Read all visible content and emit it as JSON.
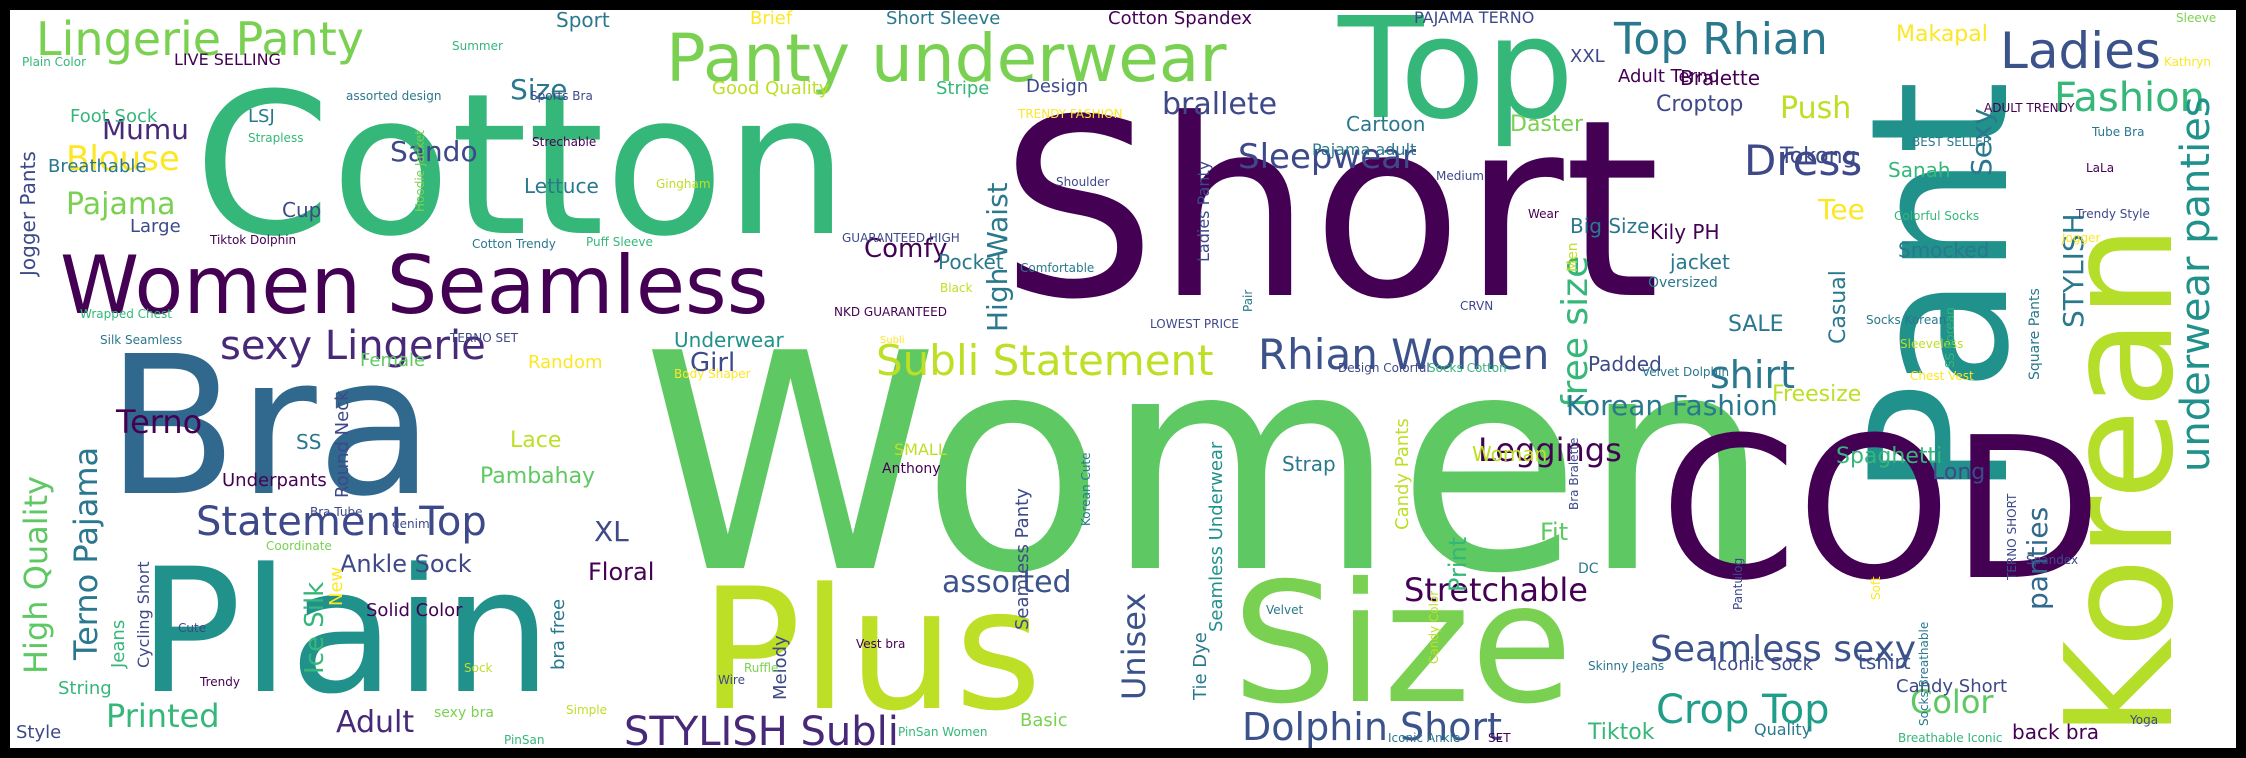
{
  "words": [
    {
      "text": "Women",
      "color": "#5ec962"
    },
    {
      "text": "Short",
      "color": "#440154"
    },
    {
      "text": "Cotton",
      "color": "#35b779"
    },
    {
      "text": "Top",
      "color": "#35b779"
    },
    {
      "text": "Pant",
      "color": "#21918c"
    },
    {
      "text": "Korean",
      "color": "#b5de2b"
    },
    {
      "text": "COD",
      "color": "#440154"
    },
    {
      "text": "Bra",
      "color": "#31688e"
    },
    {
      "text": "Plain",
      "color": "#21918c"
    },
    {
      "text": "Plus",
      "color": "#bddf26"
    },
    {
      "text": "Size",
      "color": "#7ad151"
    },
    {
      "text": "Women Seamless",
      "color": "#440154"
    },
    {
      "text": "Panty underwear",
      "color": "#7ad151"
    },
    {
      "text": "Lingerie Panty",
      "color": "#7ad151"
    },
    {
      "text": "Top Rhian",
      "color": "#2a788e"
    },
    {
      "text": "Ladies",
      "color": "#3b528b"
    },
    {
      "text": "Fashion",
      "color": "#35b779"
    },
    {
      "text": "underwear panties",
      "color": "#21918c"
    },
    {
      "text": "Subli Statement",
      "color": "#bddf26"
    },
    {
      "text": "Rhian Women",
      "color": "#3b528b"
    },
    {
      "text": "sexy Lingerie",
      "color": "#482878"
    },
    {
      "text": "Statement Top",
      "color": "#3e4989"
    },
    {
      "text": "STYLISH Subli",
      "color": "#482878"
    },
    {
      "text": "Dolphin Short",
      "color": "#3b528b"
    },
    {
      "text": "Crop Top",
      "color": "#1f9e89"
    },
    {
      "text": "Seamless sexy",
      "color": "#3b528b"
    },
    {
      "text": "Stretchable",
      "color": "#440154"
    },
    {
      "text": "free size",
      "color": "#35b779"
    },
    {
      "text": "Dress",
      "color": "#3e4989"
    },
    {
      "text": "Sleepwear",
      "color": "#3e4989"
    },
    {
      "text": "shirt",
      "color": "#2a788e"
    },
    {
      "text": "Leggings",
      "color": "#440154"
    },
    {
      "text": "Korean Fashion",
      "color": "#2a788e"
    },
    {
      "text": "High Quality",
      "color": "#5ec962"
    },
    {
      "text": "Terno Pajama",
      "color": "#2a788e"
    },
    {
      "text": "Terno",
      "color": "#440154"
    },
    {
      "text": "Blouse",
      "color": "#fde725"
    },
    {
      "text": "Pajama",
      "color": "#7ad151"
    },
    {
      "text": "Mumu",
      "color": "#482878"
    },
    {
      "text": "Sando",
      "color": "#3e4989"
    },
    {
      "text": "brallete",
      "color": "#3e4989"
    },
    {
      "text": "High Waist",
      "color": "#2a788e"
    },
    {
      "text": "Printed",
      "color": "#35b779"
    },
    {
      "text": "Adult",
      "color": "#482878"
    },
    {
      "text": "assorted",
      "color": "#3b528b"
    },
    {
      "text": "Unisex",
      "color": "#3b528b"
    },
    {
      "text": "Color",
      "color": "#5ec962"
    },
    {
      "text": "Push",
      "color": "#bddf26"
    },
    {
      "text": "Sexy",
      "color": "#2a788e"
    },
    {
      "text": "Tee",
      "color": "#fde725"
    },
    {
      "text": "STYLISH",
      "color": "#2a788e"
    },
    {
      "text": "panties",
      "color": "#31688e"
    },
    {
      "text": "Subli",
      "color": "#fde725"
    },
    {
      "text": "Comfy",
      "color": "#440154"
    },
    {
      "text": "XL",
      "color": "#3e4989"
    },
    {
      "text": "Floral",
      "color": "#440154"
    },
    {
      "text": "Pambahay",
      "color": "#5ec962"
    },
    {
      "text": "Lace",
      "color": "#bddf26"
    },
    {
      "text": "Girl",
      "color": "#3e4989"
    },
    {
      "text": "Ice Silk",
      "color": "#35b779"
    },
    {
      "text": "Ankle Sock",
      "color": "#3e4989"
    },
    {
      "text": "Tiktok",
      "color": "#35b779"
    },
    {
      "text": "Print",
      "color": "#35b779"
    },
    {
      "text": "Woman",
      "color": "#bddf26"
    },
    {
      "text": "Fit",
      "color": "#5ec962"
    },
    {
      "text": "Padded",
      "color": "#3e4989"
    },
    {
      "text": "Croptop",
      "color": "#3e4989"
    },
    {
      "text": "Bralette",
      "color": "#440154"
    },
    {
      "text": "Size",
      "color": "#2a788e"
    },
    {
      "text": "Daster",
      "color": "#7ad151"
    },
    {
      "text": "Tokong",
      "color": "#3e4989"
    },
    {
      "text": "Casual",
      "color": "#2a788e"
    },
    {
      "text": "SALE",
      "color": "#2a788e"
    },
    {
      "text": "tshirt",
      "color": "#3b528b"
    },
    {
      "text": "Spaghetti",
      "color": "#35b779"
    },
    {
      "text": "Long",
      "color": "#3e4989"
    },
    {
      "text": "Freesize",
      "color": "#bddf26"
    },
    {
      "text": "Smocked",
      "color": "#2a788e"
    },
    {
      "text": "Sanah",
      "color": "#35b779"
    },
    {
      "text": "Makapal",
      "color": "#fde725"
    },
    {
      "text": "Strap",
      "color": "#2a788e"
    },
    {
      "text": "Candy Pants",
      "color": "#bddf26"
    },
    {
      "text": "Kily PH",
      "color": "#440154"
    },
    {
      "text": "jacket",
      "color": "#2a788e"
    },
    {
      "text": "Big Size",
      "color": "#2a788e"
    },
    {
      "text": "Pocket",
      "color": "#2a788e"
    },
    {
      "text": "Underwear",
      "color": "#21918c"
    },
    {
      "text": "Cartoon",
      "color": "#2a788e"
    },
    {
      "text": "Design",
      "color": "#3e4989"
    },
    {
      "text": "Good Quality",
      "color": "#bddf26"
    },
    {
      "text": "Stripe",
      "color": "#35b779"
    },
    {
      "text": "Cotton Spandex",
      "color": "#440154"
    },
    {
      "text": "Short Sleeve",
      "color": "#2a788e"
    },
    {
      "text": "Sport",
      "color": "#2a788e"
    },
    {
      "text": "Brief",
      "color": "#fde725"
    },
    {
      "text": "PAJAMA TERNO",
      "color": "#3e4989"
    },
    {
      "text": "XXL",
      "color": "#3e4989"
    },
    {
      "text": "Adult Terno",
      "color": "#440154"
    },
    {
      "text": "LIVE SELLING",
      "color": "#440154"
    },
    {
      "text": "Foot Sock",
      "color": "#35b779"
    },
    {
      "text": "LSJ",
      "color": "#2a788e"
    },
    {
      "text": "Breathable",
      "color": "#2a788e"
    },
    {
      "text": "Cup",
      "color": "#3e4989"
    },
    {
      "text": "Lettuce",
      "color": "#2a788e"
    },
    {
      "text": "Large",
      "color": "#3e4989"
    },
    {
      "text": "Jogger Pants",
      "color": "#3e4989"
    },
    {
      "text": "Female",
      "color": "#5ec962"
    },
    {
      "text": "Random",
      "color": "#fde725"
    },
    {
      "text": "SS",
      "color": "#2a788e"
    },
    {
      "text": "Round Neck",
      "color": "#3e4989"
    },
    {
      "text": "Underpants",
      "color": "#440154"
    },
    {
      "text": "Jeans",
      "color": "#35b779"
    },
    {
      "text": "String",
      "color": "#35b779"
    },
    {
      "text": "Cycling Short",
      "color": "#3e4989"
    },
    {
      "text": "New",
      "color": "#fde725"
    },
    {
      "text": "Solid Color",
      "color": "#440154"
    },
    {
      "text": "bra free",
      "color": "#2a788e"
    },
    {
      "text": "Melody",
      "color": "#3e4989"
    },
    {
      "text": "Basic",
      "color": "#7ad151"
    },
    {
      "text": "Tie Dye",
      "color": "#2a788e"
    },
    {
      "text": "Seamless Underwear",
      "color": "#21918c"
    },
    {
      "text": "Seamless Panty",
      "color": "#3e4989"
    },
    {
      "text": "Iconic Sock",
      "color": "#3e4989"
    },
    {
      "text": "Candy Short",
      "color": "#3e4989"
    },
    {
      "text": "Quality",
      "color": "#2a788e"
    },
    {
      "text": "back bra",
      "color": "#440154"
    },
    {
      "text": "Style",
      "color": "#3e4989"
    },
    {
      "text": "sexy bra",
      "color": "#7ad151"
    },
    {
      "text": "Ladies Panty",
      "color": "#3e4989"
    },
    {
      "text": "Pajama adult",
      "color": "#2a788e"
    },
    {
      "text": "Sports Bra",
      "color": "#3e4989"
    },
    {
      "text": "Hoodie Jacket",
      "color": "#7ad151"
    },
    {
      "text": "Strechable",
      "color": "#440154"
    },
    {
      "text": "Gingham",
      "color": "#bddf26"
    },
    {
      "text": "Shoulder",
      "color": "#3e4989"
    },
    {
      "text": "Medium",
      "color": "#3e4989"
    },
    {
      "text": "Wear",
      "color": "#440154"
    },
    {
      "text": "Oversized",
      "color": "#2a788e"
    },
    {
      "text": "Men",
      "color": "#bddf26"
    },
    {
      "text": "CRVN",
      "color": "#3e4989"
    },
    {
      "text": "Pair",
      "color": "#2a788e"
    },
    {
      "text": "LOWEST PRICE",
      "color": "#3e4989"
    },
    {
      "text": "Comfortable",
      "color": "#2a788e"
    },
    {
      "text": "GUARANTEED HIGH",
      "color": "#3e4989"
    },
    {
      "text": "NKD GUARANTEED",
      "color": "#440154"
    },
    {
      "text": "Puff Sleeve",
      "color": "#35b779"
    },
    {
      "text": "Cotton Trendy",
      "color": "#2a788e"
    },
    {
      "text": "Tiktok Dolphin",
      "color": "#440154"
    },
    {
      "text": "Wrapped Chest",
      "color": "#35b779"
    },
    {
      "text": "Silk Seamless",
      "color": "#2a788e"
    },
    {
      "text": "TERNO SET",
      "color": "#3e4989"
    },
    {
      "text": "Body Shaper",
      "color": "#fde725"
    },
    {
      "text": "Design Colorful",
      "color": "#3e4989"
    },
    {
      "text": "Socks Cotton",
      "color": "#35b779"
    },
    {
      "text": "Velvet Dolphin",
      "color": "#2a788e"
    },
    {
      "text": "Sleeveless",
      "color": "#bddf26"
    },
    {
      "text": "Chest Vest",
      "color": "#fde725"
    },
    {
      "text": "SMALL",
      "color": "#bddf26"
    },
    {
      "text": "Anthony",
      "color": "#440154"
    },
    {
      "text": "Korean Cute",
      "color": "#2a788e"
    },
    {
      "text": "Bra Bralette",
      "color": "#3e4989"
    },
    {
      "text": "Bra Tube",
      "color": "#3e4989"
    },
    {
      "text": "denim",
      "color": "#3e4989"
    },
    {
      "text": "Coordinate",
      "color": "#7ad151"
    },
    {
      "text": "Cute",
      "color": "#3e4989"
    },
    {
      "text": "Trendy",
      "color": "#440154"
    },
    {
      "text": "Sock",
      "color": "#bddf26"
    },
    {
      "text": "Simple",
      "color": "#bddf26"
    },
    {
      "text": "PinSan",
      "color": "#35b779"
    },
    {
      "text": "Ruffle",
      "color": "#7ad151"
    },
    {
      "text": "Wire",
      "color": "#3e4989"
    },
    {
      "text": "Vest bra",
      "color": "#440154"
    },
    {
      "text": "PinSan Women",
      "color": "#35b779"
    },
    {
      "text": "Velvet",
      "color": "#2a788e"
    },
    {
      "text": "Candy Color",
      "color": "#bddf26"
    },
    {
      "text": "Iconic Ankle",
      "color": "#2a788e"
    },
    {
      "text": "SET",
      "color": "#440154"
    },
    {
      "text": "Skinny Jeans",
      "color": "#2a788e"
    },
    {
      "text": "Pantulog",
      "color": "#3e4989"
    },
    {
      "text": "Soft",
      "color": "#fde725"
    },
    {
      "text": "Socks Breathable",
      "color": "#2a788e"
    },
    {
      "text": "Breathable Iconic",
      "color": "#35b779"
    },
    {
      "text": "Yoga",
      "color": "#3e4989"
    },
    {
      "text": "Spandex",
      "color": "#3e4989"
    },
    {
      "text": "TERNO SHORT",
      "color": "#3e4989"
    },
    {
      "text": "DC",
      "color": "#2a788e"
    },
    {
      "text": "SS Korean",
      "color": "#35b779"
    },
    {
      "text": "Square Pants",
      "color": "#2a788e"
    },
    {
      "text": "Socks Korean",
      "color": "#2a788e"
    },
    {
      "text": "Colorful Socks",
      "color": "#35b779"
    },
    {
      "text": "Jogger",
      "color": "#fde725"
    },
    {
      "text": "Trendy Style",
      "color": "#3e4989"
    },
    {
      "text": "LaLa",
      "color": "#440154"
    },
    {
      "text": "Tube Bra",
      "color": "#2a788e"
    },
    {
      "text": "BEST SELLER",
      "color": "#2a788e"
    },
    {
      "text": "ADULT TRENDY",
      "color": "#440154"
    },
    {
      "text": "Kathryn",
      "color": "#fde725"
    },
    {
      "text": "Sleeve",
      "color": "#7ad151"
    },
    {
      "text": "Summer",
      "color": "#35b779"
    },
    {
      "text": "Plain Color",
      "color": "#35b779"
    },
    {
      "text": "assorted design",
      "color": "#2a788e"
    },
    {
      "text": "TRENDY FASHION",
      "color": "#fde725"
    },
    {
      "text": "Strapless",
      "color": "#35b779"
    },
    {
      "text": "Black",
      "color": "#bddf26"
    }
  ]
}
